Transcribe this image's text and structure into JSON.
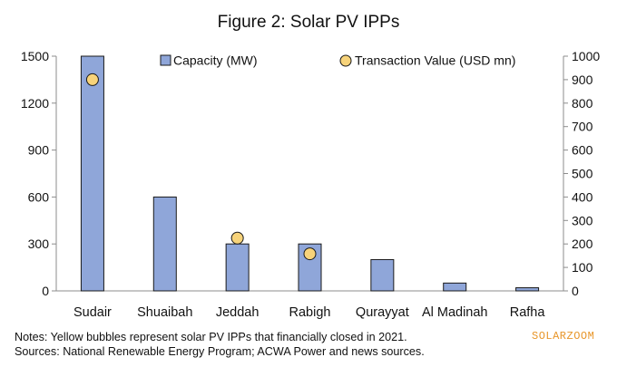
{
  "chart_data": {
    "type": "bar",
    "title": "Figure 2: Solar PV IPPs",
    "categories": [
      "Sudair",
      "Shuaibah",
      "Jeddah",
      "Rabigh",
      "Qurayyat",
      "Al Madinah",
      "Rafha"
    ],
    "series": [
      {
        "name": "Capacity (MW)",
        "kind": "bar",
        "axis": "left",
        "values": [
          1500,
          600,
          300,
          300,
          200,
          50,
          20
        ]
      },
      {
        "name": "Transaction Value (USD mn)",
        "kind": "bubble",
        "axis": "right",
        "values": [
          900,
          null,
          225,
          158,
          null,
          null,
          null
        ]
      }
    ],
    "left_axis": {
      "ylim": [
        0,
        1500
      ],
      "ticks": [
        "0",
        "300",
        "600",
        "900",
        "1200",
        "1500"
      ]
    },
    "right_axis": {
      "ylim": [
        0,
        1000
      ],
      "ticks": [
        "0",
        "100",
        "200",
        "300",
        "400",
        "500",
        "600",
        "700",
        "800",
        "900",
        "1000"
      ]
    },
    "legend_position": "top",
    "grid": false,
    "colors": {
      "bar_fill": "#8fa6d9",
      "bar_stroke": "#1a1a1a",
      "bubble_fill": "#f7d37a",
      "bubble_stroke": "#1a1a1a"
    }
  },
  "notes": {
    "line1": "Notes: Yellow bubbles represent solar PV IPPs that financially closed in 2021.",
    "line2": "Sources: National Renewable Energy Program; ACWA Power and news sources."
  },
  "brand": "SOLARZOOM"
}
